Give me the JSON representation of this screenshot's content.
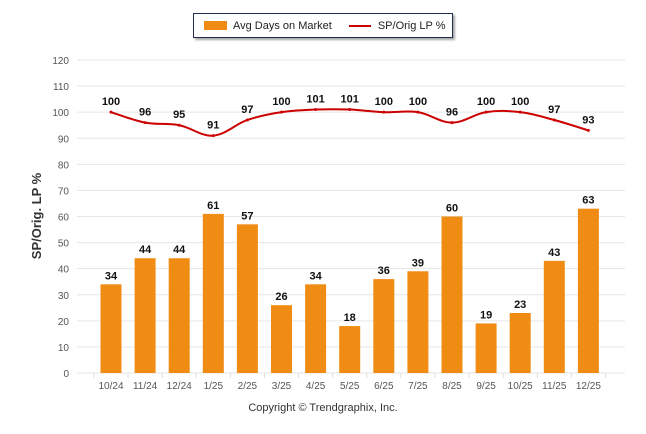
{
  "legend": {
    "bar_label": "Avg Days on Market",
    "line_label": "SP/Orig LP %"
  },
  "copyright": "Copyright © Trendgraphix, Inc.",
  "colors": {
    "bar": "#f08c14",
    "line": "#cc0000",
    "grid": "#e6e6e6",
    "tick_text": "#555555",
    "label_text": "#111111"
  },
  "chart_data": {
    "type": "bar",
    "title": "",
    "xlabel": "",
    "ylabel": "SP/Orig. LP %",
    "ylim": [
      0,
      120
    ],
    "yticks": [
      0,
      10,
      20,
      30,
      40,
      50,
      60,
      70,
      80,
      90,
      100,
      110,
      120
    ],
    "grid": true,
    "legend_position": "top-center",
    "categories": [
      "10/24",
      "11/24",
      "12/24",
      "1/25",
      "2/25",
      "3/25",
      "4/25",
      "5/25",
      "6/25",
      "7/25",
      "8/25",
      "9/25",
      "10/25",
      "11/25",
      "12/25"
    ],
    "series": [
      {
        "name": "Avg Days on Market",
        "type": "bar",
        "values": [
          34,
          44,
          44,
          61,
          57,
          26,
          34,
          18,
          36,
          39,
          60,
          19,
          23,
          43,
          63
        ]
      },
      {
        "name": "SP/Orig LP %",
        "type": "line",
        "values": [
          100,
          96,
          95,
          91,
          97,
          100,
          101,
          101,
          100,
          100,
          96,
          100,
          100,
          97,
          93
        ]
      }
    ]
  }
}
